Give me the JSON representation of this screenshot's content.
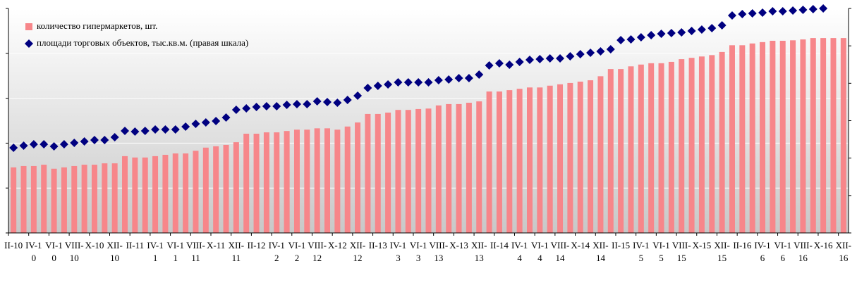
{
  "chart_data": {
    "type": "bar_scatter",
    "categories": [
      "II-10",
      null,
      "IV-10",
      null,
      "VI-10",
      null,
      "VIII-10",
      null,
      "X-10",
      null,
      "XII-10",
      null,
      "II-11",
      null,
      "IV-11",
      null,
      "VI-11",
      null,
      "VIII-11",
      null,
      "X-11",
      null,
      "XII-11",
      null,
      "II-12",
      null,
      "IV-12",
      null,
      "VI-12",
      null,
      "VIII-12",
      null,
      "X-12",
      null,
      "XII-12",
      null,
      "II-13",
      null,
      "IV-13",
      null,
      "VI-13",
      null,
      "VIII-13",
      null,
      "X-13",
      null,
      "XII-13",
      null,
      "II-14",
      null,
      "IV-14",
      null,
      "VI-14",
      null,
      "VIII-14",
      null,
      "X-14",
      null,
      "XII-14",
      null,
      "II-15",
      null,
      "IV-15",
      null,
      "VI-15",
      null,
      "VIII-15",
      null,
      "X-15",
      null,
      "XII-15",
      null,
      "II-16",
      null,
      "IV-16",
      null,
      "VI-16",
      null,
      "VIII-16",
      null,
      "X-16",
      null,
      "XII-16"
    ],
    "series": [
      {
        "name": "количество гипермаркетов, шт.",
        "color": "#f7868a",
        "kind": "bar",
        "values": [
          146,
          149,
          149,
          152,
          143,
          146,
          149,
          152,
          152,
          155,
          155,
          171,
          168,
          168,
          171,
          174,
          177,
          177,
          183,
          190,
          193,
          196,
          202,
          221,
          221,
          224,
          224,
          227,
          230,
          230,
          233,
          233,
          230,
          237,
          246,
          265,
          265,
          268,
          274,
          274,
          276,
          277,
          284,
          287,
          287,
          290,
          293,
          315,
          315,
          318,
          321,
          324,
          324,
          328,
          331,
          334,
          337,
          340,
          349,
          365,
          365,
          371,
          375,
          378,
          378,
          381,
          387,
          390,
          393,
          396,
          403,
          418,
          418,
          422,
          425,
          428,
          428,
          429,
          431,
          434,
          434,
          434,
          434
        ]
      },
      {
        "name": "площади торговых объектов, тыс.кв.м. (правая шкала)",
        "color": "#000080",
        "kind": "diamond",
        "axis": "y2",
        "values": [
          2276,
          2332,
          2370,
          2370,
          2314,
          2370,
          2408,
          2445,
          2483,
          2483,
          2558,
          2727,
          2709,
          2727,
          2765,
          2765,
          2765,
          2840,
          2916,
          2953,
          2991,
          3085,
          3292,
          3329,
          3367,
          3386,
          3386,
          3423,
          3442,
          3442,
          3517,
          3499,
          3480,
          3555,
          3668,
          3875,
          3931,
          3969,
          4025,
          4025,
          4025,
          4025,
          4082,
          4101,
          4138,
          4138,
          4232,
          4477,
          4533,
          4496,
          4571,
          4627,
          4646,
          4665,
          4665,
          4721,
          4778,
          4815,
          4853,
          4909,
          5154,
          5173,
          5229,
          5286,
          5323,
          5342,
          5361,
          5398,
          5436,
          5474,
          5549,
          5812,
          5850,
          5869,
          5888,
          5925,
          5925,
          5944,
          5963,
          5982,
          6000,
          null,
          null
        ]
      }
    ],
    "ylim": [
      0,
      500
    ],
    "yticks": [
      0,
      100,
      200,
      300,
      400,
      500
    ],
    "y2lim": [
      0,
      6000
    ],
    "y2ticks": [
      0,
      1000,
      2000,
      3000,
      4000,
      5000,
      6000
    ],
    "grid": true,
    "legend": "upper left"
  }
}
